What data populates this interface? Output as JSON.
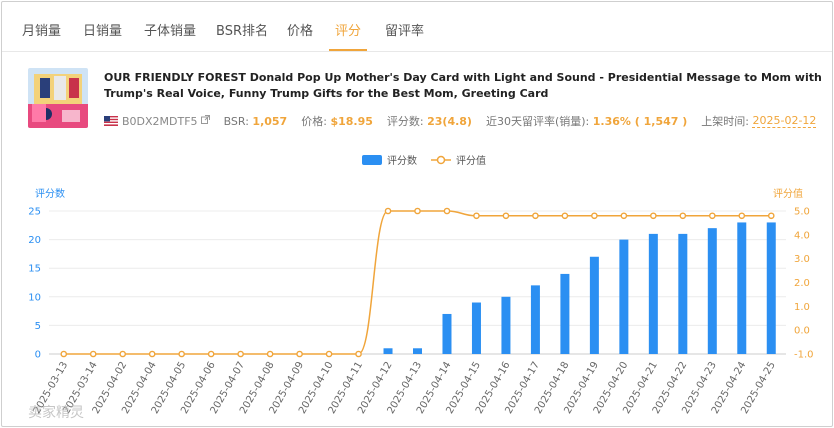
{
  "tabs": [
    {
      "label": "月销量",
      "active": false
    },
    {
      "label": "日销量",
      "active": false
    },
    {
      "label": "子体销量",
      "active": false
    },
    {
      "label": "BSR排名",
      "active": false
    },
    {
      "label": "价格",
      "active": false
    },
    {
      "label": "评分",
      "active": true
    },
    {
      "label": "留评率",
      "active": false
    }
  ],
  "product": {
    "title": "OUR FRIENDLY FOREST Donald Pop Up Mother's Day Card with Light and Sound - Presidential Message to Mom with Trump's Real Voice, Funny Trump Gifts for the Best Mom, Greeting Card",
    "asin": "B0DX2MDTF5",
    "bsr_label": "BSR:",
    "bsr_value": "1,057",
    "price_label": "价格:",
    "price_value": "$18.95",
    "rating_label": "评分数:",
    "rating_value": "23(4.8)",
    "review_rate_label": "近30天留评率(销量):",
    "review_rate_value": "1.36% ( 1,547 )",
    "launch_label": "上架时间:",
    "launch_value": "2025-02-12"
  },
  "legend": {
    "bar_label": "评分数",
    "line_label": "评分值"
  },
  "colors": {
    "accent": "#f0a53b",
    "bar": "#2b8ff2",
    "line": "#f0a53b",
    "left_axis": "#2b8ff2",
    "right_axis": "#f0a53b"
  },
  "watermark": "卖家精灵",
  "chart_data": {
    "type": "bar",
    "title": "",
    "x": [
      "2025-03-13",
      "2025-03-14",
      "2025-04-02",
      "2025-04-04",
      "2025-04-05",
      "2025-04-06",
      "2025-04-07",
      "2025-04-08",
      "2025-04-09",
      "2025-04-10",
      "2025-04-11",
      "2025-04-12",
      "2025-04-13",
      "2025-04-14",
      "2025-04-15",
      "2025-04-16",
      "2025-04-17",
      "2025-04-18",
      "2025-04-19",
      "2025-04-20",
      "2025-04-21",
      "2025-04-22",
      "2025-04-23",
      "2025-04-24",
      "2025-04-25"
    ],
    "series": [
      {
        "name": "评分数",
        "type": "bar",
        "axis": "left",
        "values": [
          0,
          0,
          0,
          0,
          0,
          0,
          0,
          0,
          0,
          0,
          0,
          1,
          1,
          7,
          9,
          10,
          12,
          14,
          17,
          20,
          21,
          21,
          22,
          23,
          23
        ]
      },
      {
        "name": "评分值",
        "type": "line",
        "axis": "right",
        "values": [
          -1.0,
          -1.0,
          -1.0,
          -1.0,
          -1.0,
          -1.0,
          -1.0,
          -1.0,
          -1.0,
          -1.0,
          -1.0,
          5.0,
          5.0,
          5.0,
          4.8,
          4.8,
          4.8,
          4.8,
          4.8,
          4.8,
          4.8,
          4.8,
          4.8,
          4.8,
          4.8
        ]
      }
    ],
    "ylabel_left": "评分数",
    "ylabel_right": "评分值",
    "ylim_left": [
      0,
      25
    ],
    "yticks_left": [
      "0",
      "5",
      "10",
      "15",
      "20",
      "25"
    ],
    "ylim_right": [
      -1.0,
      5.0
    ],
    "yticks_right": [
      "-1.0",
      "0.0",
      "1.0",
      "2.0",
      "3.0",
      "4.0",
      "5.0"
    ],
    "grid": true,
    "legend_position": "top-center"
  }
}
